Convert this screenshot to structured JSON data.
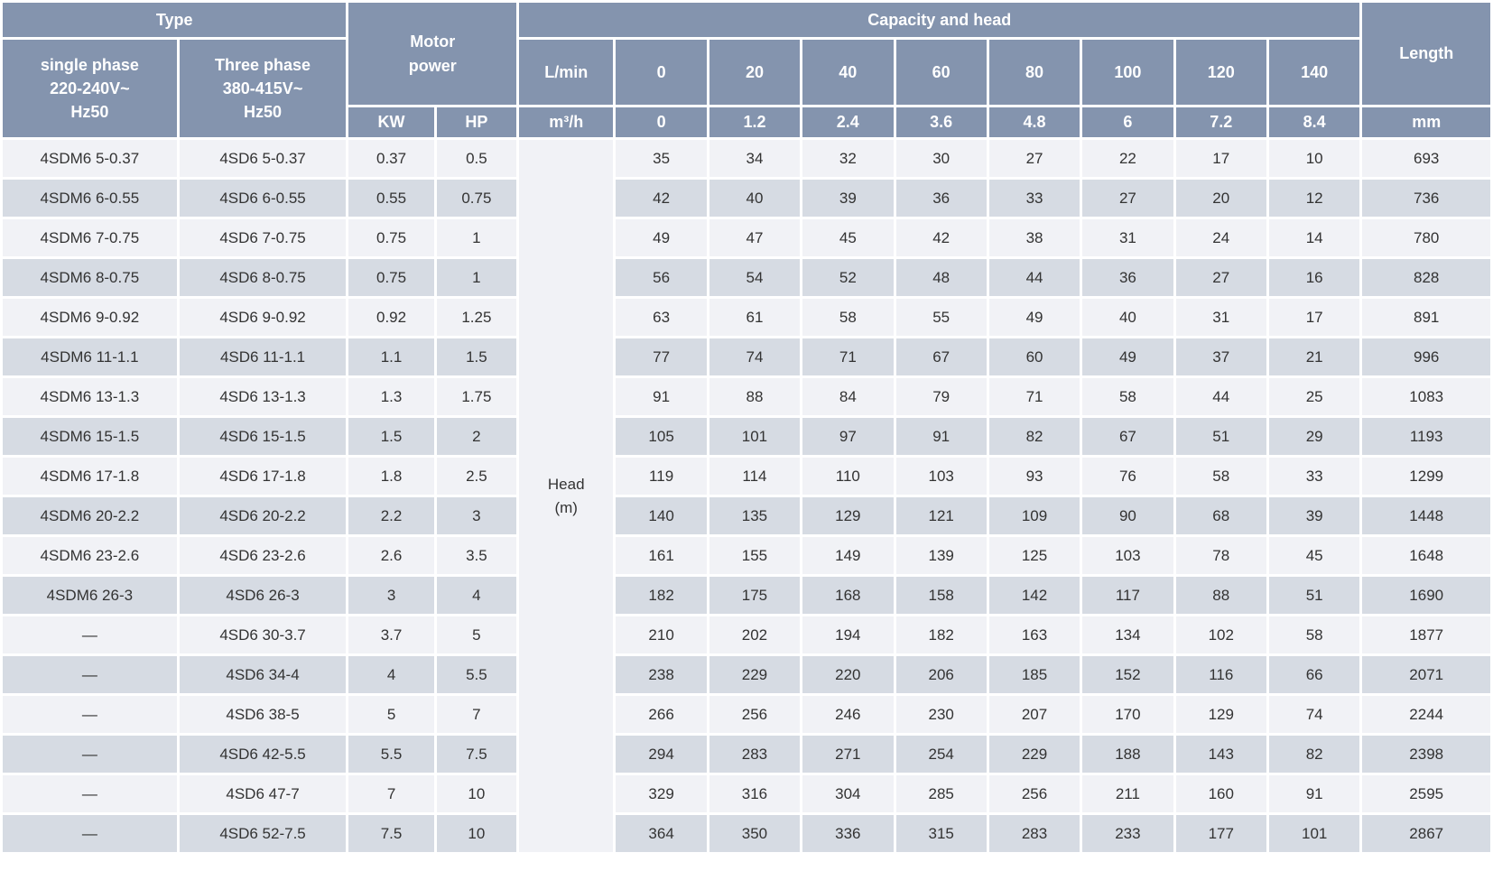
{
  "header": {
    "type_label": "Type",
    "single_phase_label": "single phase\n220-240V~\nHz50",
    "three_phase_label": "Three phase\n380-415V~\nHz50",
    "motor_power_label": "Motor\npower",
    "kw_label": "KW",
    "hp_label": "HP",
    "capacity_head_label": "Capacity and head",
    "lmin_label": "L/min",
    "m3h_label": "m³/h",
    "length_label": "Length",
    "length_unit_label": "mm",
    "lmin_values": [
      "0",
      "20",
      "40",
      "60",
      "80",
      "100",
      "120",
      "140"
    ],
    "m3h_values": [
      "0",
      "1.2",
      "2.4",
      "3.6",
      "4.8",
      "6",
      "7.2",
      "8.4"
    ]
  },
  "head_unit_label": "Head\n(m)",
  "rows": [
    {
      "single_phase": "4SDM6 5-0.37",
      "three_phase": "4SD6 5-0.37",
      "kw": "0.37",
      "hp": "0.5",
      "heads": [
        35,
        34,
        32,
        30,
        27,
        22,
        17,
        10
      ],
      "length": 693
    },
    {
      "single_phase": "4SDM6 6-0.55",
      "three_phase": "4SD6 6-0.55",
      "kw": "0.55",
      "hp": "0.75",
      "heads": [
        42,
        40,
        39,
        36,
        33,
        27,
        20,
        12
      ],
      "length": 736
    },
    {
      "single_phase": "4SDM6 7-0.75",
      "three_phase": "4SD6 7-0.75",
      "kw": "0.75",
      "hp": "1",
      "heads": [
        49,
        47,
        45,
        42,
        38,
        31,
        24,
        14
      ],
      "length": 780
    },
    {
      "single_phase": "4SDM6 8-0.75",
      "three_phase": "4SD6 8-0.75",
      "kw": "0.75",
      "hp": "1",
      "heads": [
        56,
        54,
        52,
        48,
        44,
        36,
        27,
        16
      ],
      "length": 828
    },
    {
      "single_phase": "4SDM6 9-0.92",
      "three_phase": "4SD6 9-0.92",
      "kw": "0.92",
      "hp": "1.25",
      "heads": [
        63,
        61,
        58,
        55,
        49,
        40,
        31,
        17
      ],
      "length": 891
    },
    {
      "single_phase": "4SDM6 11-1.1",
      "three_phase": "4SD6 11-1.1",
      "kw": "1.1",
      "hp": "1.5",
      "heads": [
        77,
        74,
        71,
        67,
        60,
        49,
        37,
        21
      ],
      "length": 996
    },
    {
      "single_phase": "4SDM6 13-1.3",
      "three_phase": "4SD6 13-1.3",
      "kw": "1.3",
      "hp": "1.75",
      "heads": [
        91,
        88,
        84,
        79,
        71,
        58,
        44,
        25
      ],
      "length": 1083
    },
    {
      "single_phase": "4SDM6 15-1.5",
      "three_phase": "4SD6 15-1.5",
      "kw": "1.5",
      "hp": "2",
      "heads": [
        105,
        101,
        97,
        91,
        82,
        67,
        51,
        29
      ],
      "length": 1193
    },
    {
      "single_phase": "4SDM6 17-1.8",
      "three_phase": "4SD6 17-1.8",
      "kw": "1.8",
      "hp": "2.5",
      "heads": [
        119,
        114,
        110,
        103,
        93,
        76,
        58,
        33
      ],
      "length": 1299
    },
    {
      "single_phase": "4SDM6 20-2.2",
      "three_phase": "4SD6 20-2.2",
      "kw": "2.2",
      "hp": "3",
      "heads": [
        140,
        135,
        129,
        121,
        109,
        90,
        68,
        39
      ],
      "length": 1448
    },
    {
      "single_phase": "4SDM6 23-2.6",
      "three_phase": "4SD6 23-2.6",
      "kw": "2.6",
      "hp": "3.5",
      "heads": [
        161,
        155,
        149,
        139,
        125,
        103,
        78,
        45
      ],
      "length": 1648
    },
    {
      "single_phase": "4SDM6 26-3",
      "three_phase": "4SD6 26-3",
      "kw": "3",
      "hp": "4",
      "heads": [
        182,
        175,
        168,
        158,
        142,
        117,
        88,
        51
      ],
      "length": 1690
    },
    {
      "single_phase": "—",
      "three_phase": "4SD6 30-3.7",
      "kw": "3.7",
      "hp": "5",
      "heads": [
        210,
        202,
        194,
        182,
        163,
        134,
        102,
        58
      ],
      "length": 1877
    },
    {
      "single_phase": "—",
      "three_phase": "4SD6 34-4",
      "kw": "4",
      "hp": "5.5",
      "heads": [
        238,
        229,
        220,
        206,
        185,
        152,
        116,
        66
      ],
      "length": 2071
    },
    {
      "single_phase": "—",
      "three_phase": "4SD6 38-5",
      "kw": "5",
      "hp": "7",
      "heads": [
        266,
        256,
        246,
        230,
        207,
        170,
        129,
        74
      ],
      "length": 2244
    },
    {
      "single_phase": "—",
      "three_phase": "4SD6 42-5.5",
      "kw": "5.5",
      "hp": "7.5",
      "heads": [
        294,
        283,
        271,
        254,
        229,
        188,
        143,
        82
      ],
      "length": 2398
    },
    {
      "single_phase": "—",
      "three_phase": "4SD6 47-7",
      "kw": "7",
      "hp": "10",
      "heads": [
        329,
        316,
        304,
        285,
        256,
        211,
        160,
        91
      ],
      "length": 2595
    },
    {
      "single_phase": "—",
      "three_phase": "4SD6 52-7.5",
      "kw": "7.5",
      "hp": "10",
      "heads": [
        364,
        350,
        336,
        315,
        283,
        233,
        177,
        101
      ],
      "length": 2867
    }
  ],
  "colors": {
    "header_background": "#8494ae",
    "header_text": "#ffffff",
    "row_light": "#f1f2f6",
    "row_dark": "#d6dbe3",
    "body_text": "#333333",
    "grid": "#ffffff"
  }
}
